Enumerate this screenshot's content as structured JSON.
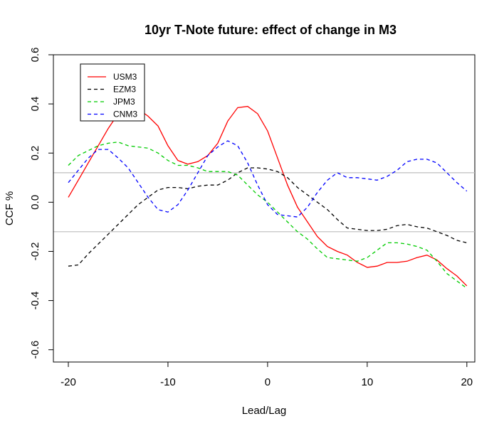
{
  "chart_data": {
    "type": "line",
    "title": "10yr T-Note future: effect of change in M3",
    "xlabel": "Lead/Lag",
    "ylabel": "CCF %",
    "xlim": [
      -20,
      20
    ],
    "ylim": [
      -0.6,
      0.6
    ],
    "xticks": [
      -20,
      -10,
      0,
      10,
      20
    ],
    "yticks": [
      -0.6,
      -0.4,
      -0.2,
      0.0,
      0.2,
      0.4,
      0.6
    ],
    "ytick_labels": [
      "-0.6",
      "-0.4",
      "-0.2",
      "0.0",
      "0.2",
      "0.4",
      "0.6"
    ],
    "x": [
      -20,
      -19,
      -18,
      -17,
      -16,
      -15,
      -14,
      -13,
      -12,
      -11,
      -10,
      -9,
      -8,
      -7,
      -6,
      -5,
      -4,
      -3,
      -2,
      -1,
      0,
      1,
      2,
      3,
      4,
      5,
      6,
      7,
      8,
      9,
      10,
      11,
      12,
      13,
      14,
      15,
      16,
      17,
      18,
      19,
      20
    ],
    "hlines": [
      0.12,
      -0.12
    ],
    "hline_color": "#bebebe",
    "legend_position": "top-left",
    "series": [
      {
        "name": "USM3",
        "color": "#ff0000",
        "dash": "solid",
        "values": [
          0.02,
          0.09,
          0.16,
          0.23,
          0.3,
          0.36,
          0.4,
          0.38,
          0.35,
          0.31,
          0.23,
          0.17,
          0.155,
          0.165,
          0.19,
          0.24,
          0.33,
          0.385,
          0.39,
          0.36,
          0.29,
          0.18,
          0.07,
          -0.02,
          -0.08,
          -0.14,
          -0.18,
          -0.2,
          -0.215,
          -0.245,
          -0.265,
          -0.26,
          -0.245,
          -0.245,
          -0.24,
          -0.225,
          -0.215,
          -0.235,
          -0.27,
          -0.3,
          -0.34
        ]
      },
      {
        "name": "EZM3",
        "color": "#000000",
        "dash": "5,4",
        "values": [
          -0.26,
          -0.255,
          -0.21,
          -0.17,
          -0.13,
          -0.09,
          -0.05,
          -0.01,
          0.02,
          0.05,
          0.06,
          0.06,
          0.055,
          0.065,
          0.07,
          0.07,
          0.09,
          0.12,
          0.14,
          0.14,
          0.135,
          0.125,
          0.1,
          0.06,
          0.03,
          0.0,
          -0.03,
          -0.07,
          -0.105,
          -0.11,
          -0.115,
          -0.115,
          -0.11,
          -0.095,
          -0.09,
          -0.1,
          -0.105,
          -0.12,
          -0.135,
          -0.155,
          -0.165
        ]
      },
      {
        "name": "JPM3",
        "color": "#00cc00",
        "dash": "5,4",
        "values": [
          0.15,
          0.19,
          0.21,
          0.23,
          0.24,
          0.245,
          0.23,
          0.225,
          0.22,
          0.2,
          0.17,
          0.15,
          0.15,
          0.14,
          0.125,
          0.125,
          0.125,
          0.11,
          0.07,
          0.03,
          0.0,
          -0.04,
          -0.08,
          -0.12,
          -0.15,
          -0.19,
          -0.225,
          -0.23,
          -0.235,
          -0.24,
          -0.225,
          -0.195,
          -0.165,
          -0.165,
          -0.17,
          -0.18,
          -0.195,
          -0.24,
          -0.29,
          -0.32,
          -0.35
        ]
      },
      {
        "name": "CNM3",
        "color": "#0000ff",
        "dash": "5,4",
        "values": [
          0.08,
          0.13,
          0.18,
          0.215,
          0.215,
          0.18,
          0.14,
          0.08,
          0.02,
          -0.03,
          -0.04,
          -0.01,
          0.05,
          0.12,
          0.19,
          0.225,
          0.25,
          0.23,
          0.16,
          0.07,
          -0.01,
          -0.05,
          -0.055,
          -0.06,
          -0.02,
          0.04,
          0.09,
          0.12,
          0.1,
          0.1,
          0.095,
          0.09,
          0.105,
          0.13,
          0.165,
          0.175,
          0.175,
          0.16,
          0.12,
          0.08,
          0.045
        ]
      }
    ]
  }
}
